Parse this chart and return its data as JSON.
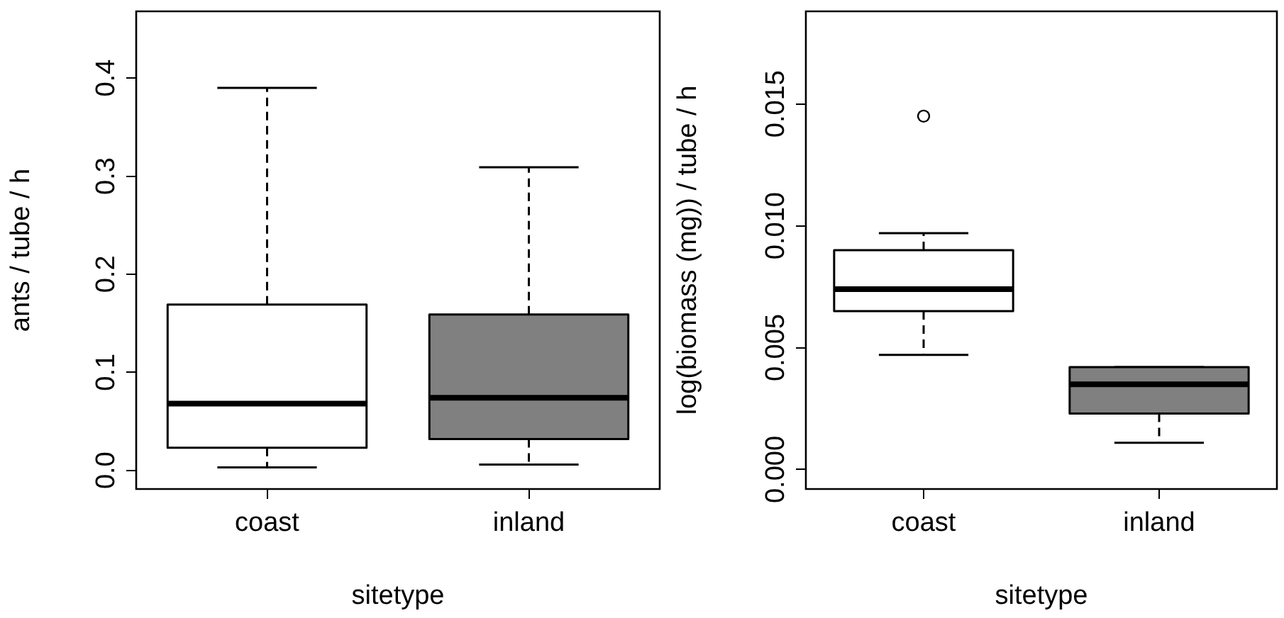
{
  "chart_data": [
    {
      "type": "box",
      "xlabel": "sitetype",
      "ylabel": "ants / tube / h",
      "categories": [
        "coast",
        "inland"
      ],
      "colors": [
        "#ffffff",
        "#808080"
      ],
      "boxes": [
        {
          "low": 0.003,
          "q1": 0.023,
          "median": 0.068,
          "q3": 0.169,
          "high": 0.39
        },
        {
          "low": 0.006,
          "q1": 0.032,
          "median": 0.074,
          "q3": 0.159,
          "high": 0.309
        }
      ],
      "ylim": [
        -0.019,
        0.468
      ],
      "yticks": [
        {
          "value": 0,
          "label": "0.0"
        },
        0.1,
        0.2,
        0.3,
        0.4
      ],
      "grid": false
    },
    {
      "type": "box",
      "xlabel": "sitetype",
      "ylabel": "log(biomass (mg)) / tube / h",
      "categories": [
        "coast",
        "inland"
      ],
      "colors": [
        "#ffffff",
        "#808080"
      ],
      "boxes": [
        {
          "low": 0.0047,
          "q1": 0.0065,
          "median": 0.0074,
          "q3": 0.009,
          "high": 0.0097,
          "outliers": [
            0.0145
          ]
        },
        {
          "low": 0.0011,
          "q1": 0.0023,
          "median": 0.0035,
          "q3": 0.0042,
          "high": 0.0042
        }
      ],
      "ylim": [
        -0.0008,
        0.0188
      ],
      "yticks": [
        {
          "value": 0,
          "label": "0.000"
        },
        {
          "value": 0.005,
          "label": "0.005"
        },
        {
          "value": 0.01,
          "label": "0.010"
        },
        {
          "value": 0.015,
          "label": "0.015"
        }
      ],
      "grid": false
    }
  ]
}
